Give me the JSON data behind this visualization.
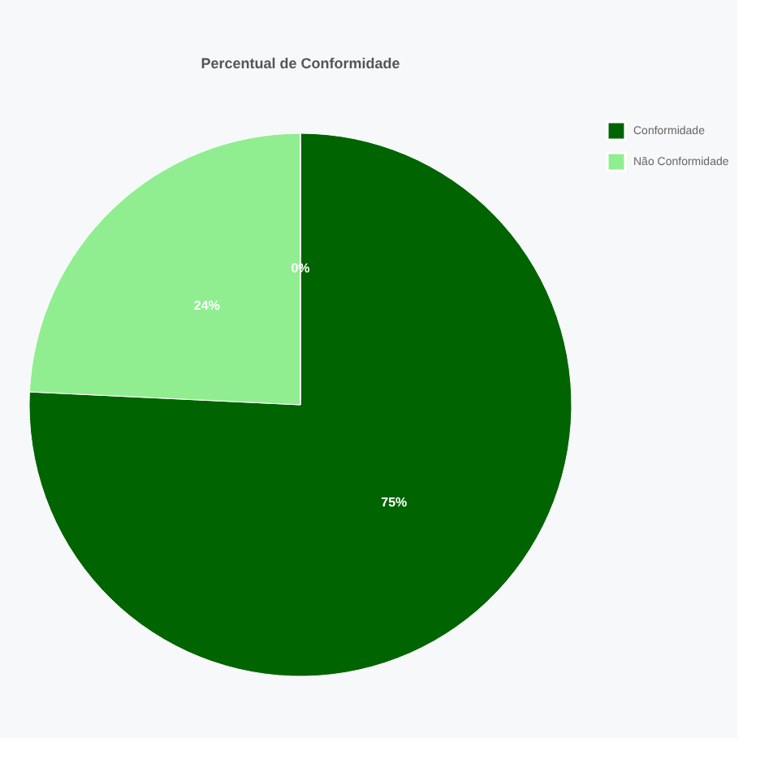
{
  "chart_data": {
    "type": "pie",
    "title": "Percentual de Conformidade",
    "categories": [
      "Conformidade",
      "Não Conformidade",
      null
    ],
    "values": [
      75,
      24,
      0
    ],
    "colors": [
      "#006400",
      "#90ee90",
      "#c8c8c8"
    ],
    "value_labels": [
      "75%",
      "24%",
      "0%"
    ],
    "legend": "right"
  }
}
